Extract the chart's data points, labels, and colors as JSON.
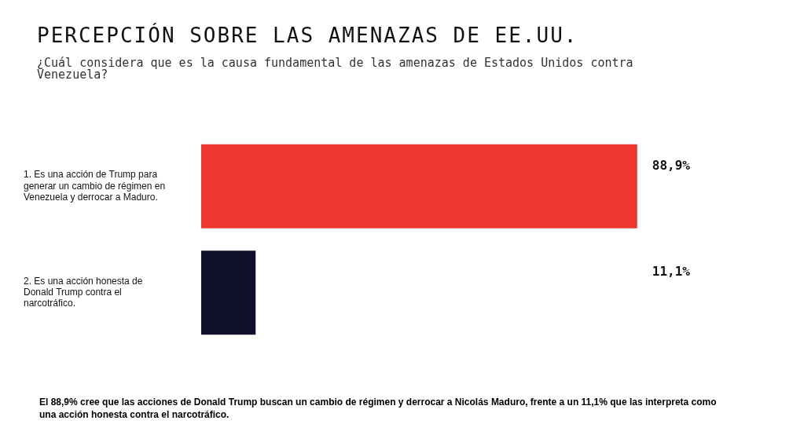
{
  "chart_data": {
    "type": "bar",
    "orientation": "horizontal",
    "title": "PERCEPCIÓN SOBRE LAS AMENAZAS DE EE.UU.",
    "subtitle": "¿Cuál considera que es la causa fundamental de las amenazas de Estados Unidos contra Venezuela?",
    "categories": [
      "1. Es una acción de Trump para generar un cambio de régimen en Venezuela y derrocar a Maduro.",
      "2. Es una acción honesta de Donald Trump contra el narcotráfico."
    ],
    "values": [
      88.9,
      11.1
    ],
    "colors": [
      "#ee352e",
      "#11112e"
    ],
    "value_labels": [
      "88,9%",
      "11,1%"
    ],
    "tick_labels": "y",
    "legend": false,
    "annotations": [
      "El 88,9% cree que las acciones de Donald Trump buscan un cambio de régimen y derrocar a Nicolás Maduro, frente a un 11,1% que las interpreta como una acción honesta contra el narcotráfico."
    ]
  }
}
